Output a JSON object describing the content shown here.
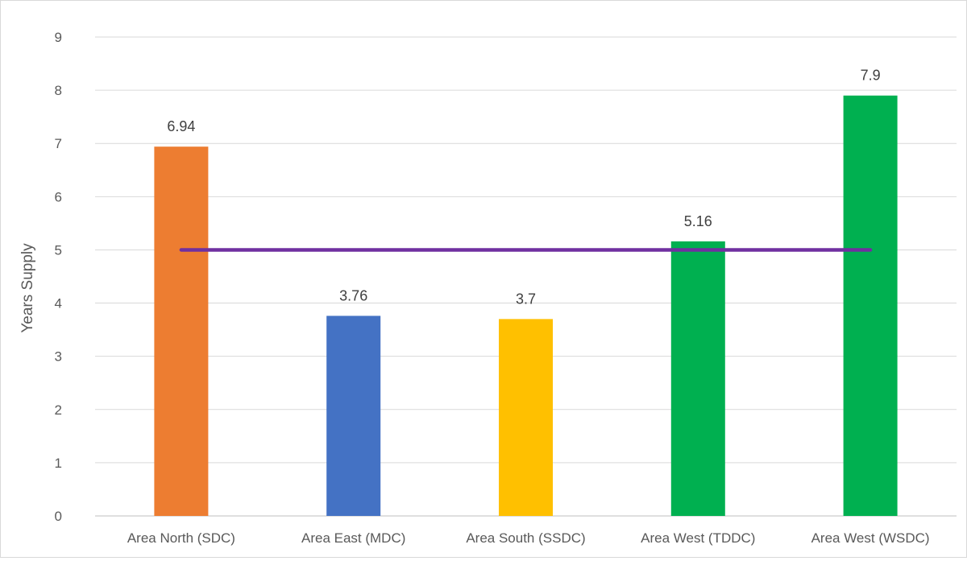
{
  "chart_data": {
    "type": "bar",
    "categories": [
      "Area North (SDC)",
      "Area East (MDC)",
      "Area South (SSDC)",
      "Area West (TDDC)",
      "Area West (WSDC)"
    ],
    "values": [
      6.94,
      3.76,
      3.7,
      5.16,
      7.9
    ],
    "value_labels": [
      "6.94",
      "3.76",
      "3.7",
      "5.16",
      "7.9"
    ],
    "bar_colors": [
      "#ed7d31",
      "#4472c4",
      "#ffc000",
      "#00b050",
      "#00b050"
    ],
    "reference_line": {
      "value": 5,
      "color": "#7030a0"
    },
    "ylabel": "Years Supply",
    "xlabel": "",
    "title": "",
    "ylim": [
      0,
      9
    ],
    "yticks": [
      "0",
      "1",
      "2",
      "3",
      "4",
      "5",
      "6",
      "7",
      "8",
      "9"
    ],
    "grid": true,
    "legend": "none"
  }
}
